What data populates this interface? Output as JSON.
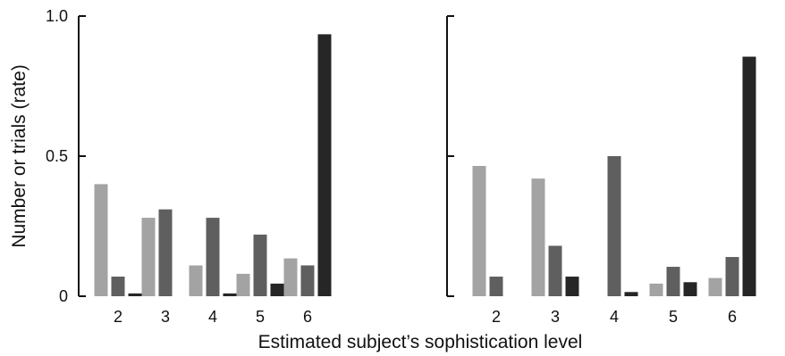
{
  "chart_data": {
    "type": "bar",
    "ylabel": "Number or trials (rate)",
    "xlabel": "Estimated subject’s sophistication level",
    "ylim": [
      0,
      1.0
    ],
    "yticks": [
      "0",
      "0.5",
      "1.0"
    ],
    "ytick_values": [
      0,
      0.5,
      1.0
    ],
    "categories": [
      "2",
      "3",
      "4",
      "5",
      "6"
    ],
    "colors": [
      "#a3a3a3",
      "#5f5f5f",
      "#262626"
    ],
    "panels": [
      {
        "series": [
          {
            "values": [
              0.4,
              0.28,
              0.11,
              0.08,
              0.135
            ]
          },
          {
            "values": [
              0.07,
              0.31,
              0.28,
              0.22,
              0.11
            ]
          },
          {
            "values": [
              0.01,
              0.0,
              0.01,
              0.045,
              0.935
            ]
          }
        ]
      },
      {
        "series": [
          {
            "values": [
              0.465,
              0.42,
              0.0,
              0.045,
              0.065
            ]
          },
          {
            "values": [
              0.07,
              0.18,
              0.5,
              0.105,
              0.14
            ]
          },
          {
            "values": [
              0.0,
              0.07,
              0.015,
              0.05,
              0.855
            ]
          }
        ]
      }
    ]
  }
}
